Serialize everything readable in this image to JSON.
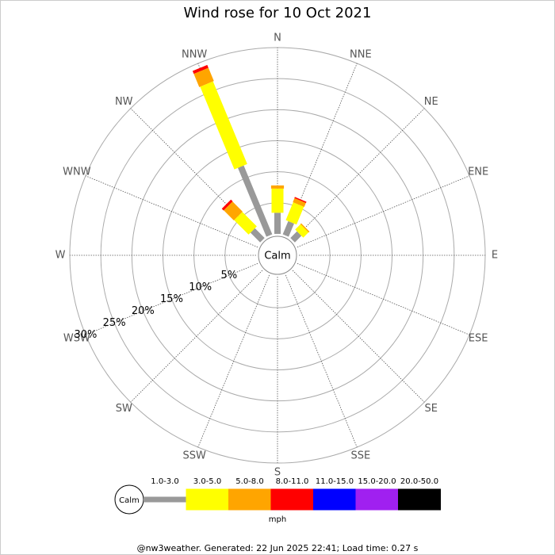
{
  "chart_data": {
    "type": "windrose",
    "title": "Wind rose for 10 Oct 2021",
    "directions": [
      "N",
      "NNE",
      "NE",
      "ENE",
      "E",
      "ESE",
      "SE",
      "SSE",
      "S",
      "SSW",
      "SW",
      "WSW",
      "W",
      "WNW",
      "NW",
      "NNW"
    ],
    "calm_label": "Calm",
    "rlim": [
      0,
      30
    ],
    "rticks": [
      {
        "value": 5,
        "label": "5%"
      },
      {
        "value": 10,
        "label": "10%"
      },
      {
        "value": 15,
        "label": "15%"
      },
      {
        "value": 20,
        "label": "20%"
      },
      {
        "value": 25,
        "label": "25%"
      },
      {
        "value": 30,
        "label": "30%"
      }
    ],
    "series": [
      {
        "name": "1.0-3.0",
        "color": "#999999",
        "values": [
          3.4,
          2.3,
          1.5,
          0,
          0,
          0,
          0,
          0,
          0,
          0,
          0,
          0,
          0,
          0,
          2.2,
          12.0
        ]
      },
      {
        "name": "3.0-5.0",
        "color": "#ffff00",
        "values": [
          3.9,
          3.1,
          1.2,
          0,
          0,
          0,
          0,
          0,
          0,
          0,
          0,
          0,
          0,
          0,
          3.3,
          14.4
        ]
      },
      {
        "name": "5.0-8.0",
        "color": "#ffa500",
        "values": [
          0.5,
          0.7,
          0.2,
          0,
          0,
          0,
          0,
          0,
          0,
          0,
          0,
          0,
          0,
          0,
          2.3,
          2.3
        ]
      },
      {
        "name": "8.0-11.0",
        "color": "#ff0000",
        "values": [
          0,
          0.2,
          0,
          0,
          0,
          0,
          0,
          0,
          0,
          0,
          0,
          0,
          0,
          0,
          0.4,
          0.5
        ]
      },
      {
        "name": "11.0-15.0",
        "color": "#0000ff",
        "values": [
          0,
          0,
          0,
          0,
          0,
          0,
          0,
          0,
          0,
          0,
          0,
          0,
          0,
          0,
          0,
          0
        ]
      },
      {
        "name": "15.0-20.0",
        "color": "#a020f0",
        "values": [
          0,
          0,
          0,
          0,
          0,
          0,
          0,
          0,
          0,
          0,
          0,
          0,
          0,
          0,
          0,
          0
        ]
      },
      {
        "name": "20.0-50.0",
        "color": "#000000",
        "values": [
          0,
          0,
          0,
          0,
          0,
          0,
          0,
          0,
          0,
          0,
          0,
          0,
          0,
          0,
          0,
          0
        ]
      }
    ],
    "legend_units": "mph",
    "footer": "@nw3weather. Generated: 22 Jun 2025 22:41; Load time: 0.27 s"
  }
}
